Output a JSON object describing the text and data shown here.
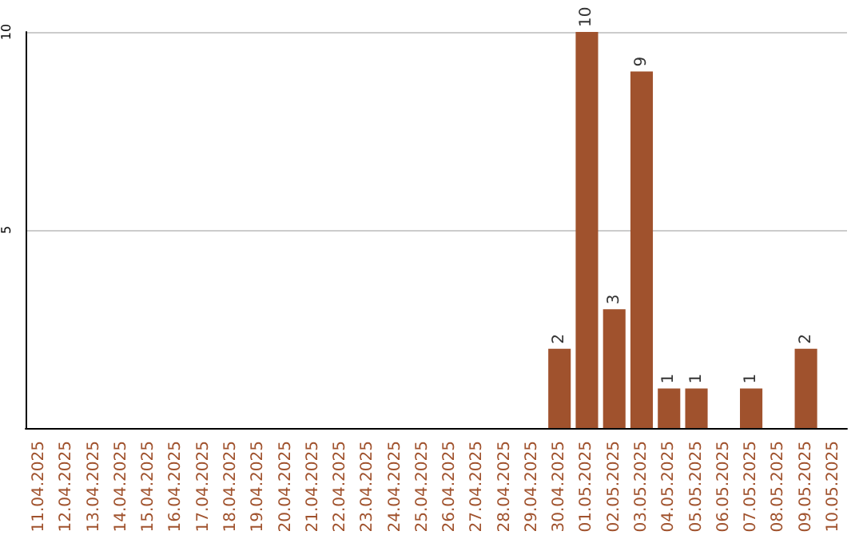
{
  "chart_data": {
    "type": "bar",
    "categories": [
      "11.04.2025",
      "12.04.2025",
      "13.04.2025",
      "14.04.2025",
      "15.04.2025",
      "16.04.2025",
      "17.04.2025",
      "18.04.2025",
      "19.04.2025",
      "20.04.2025",
      "21.04.2025",
      "22.04.2025",
      "23.04.2025",
      "24.04.2025",
      "25.04.2025",
      "26.04.2025",
      "27.04.2025",
      "28.04.2025",
      "29.04.2025",
      "30.04.2025",
      "01.05.2025",
      "02.05.2025",
      "03.05.2025",
      "04.05.2025",
      "05.05.2025",
      "06.05.2025",
      "07.05.2025",
      "08.05.2025",
      "09.05.2025",
      "10.05.2025"
    ],
    "values": [
      0,
      0,
      0,
      0,
      0,
      0,
      0,
      0,
      0,
      0,
      0,
      0,
      0,
      0,
      0,
      0,
      0,
      0,
      0,
      2,
      10,
      3,
      9,
      1,
      1,
      0,
      1,
      0,
      2,
      0
    ],
    "value_labels": [
      null,
      null,
      null,
      null,
      null,
      null,
      null,
      null,
      null,
      null,
      null,
      null,
      null,
      null,
      null,
      null,
      null,
      null,
      null,
      "2",
      "10",
      "3",
      "9",
      "1",
      "1",
      null,
      "1",
      null,
      "2",
      null
    ],
    "color": "#a0522d",
    "ylim": [
      0,
      10
    ],
    "yticks": [
      5,
      10
    ],
    "grid": "y"
  }
}
